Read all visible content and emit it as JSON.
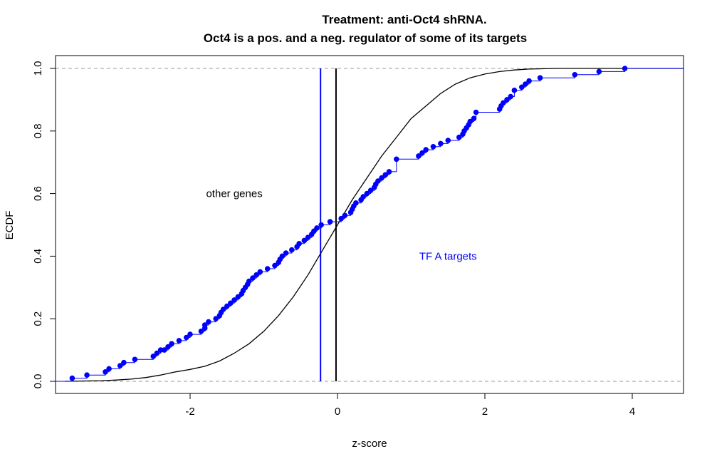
{
  "chart_data": {
    "type": "line",
    "title": [
      "Treatment: anti-Oct4 shRNA.",
      "Oct4 is a pos. and a neg. regulator of some of its targets"
    ],
    "xlabel": "z-score",
    "ylabel": "ECDF",
    "xlim": [
      -3.7,
      4.7
    ],
    "ylim": [
      0,
      1
    ],
    "x_ticks": [
      -2,
      0,
      2,
      4
    ],
    "x_tick_labels": [
      "-2",
      "0",
      "2",
      "4"
    ],
    "y_ticks": [
      0,
      0.2,
      0.4,
      0.6,
      0.8,
      1
    ],
    "y_tick_labels": [
      "0.0",
      "0.2",
      "0.4",
      "0.6",
      "0.8",
      "1.0"
    ],
    "reference_lines": {
      "horizontal_dashed": [
        0,
        1
      ],
      "vertical": [
        {
          "x": -0.02,
          "color": "#000000"
        },
        {
          "x": -0.23,
          "color": "#0000ff"
        }
      ]
    },
    "annotations": [
      {
        "text": "other genes",
        "x": -1.4,
        "y": 0.6,
        "color": "#000000"
      },
      {
        "text": "TF A targets",
        "x": 1.5,
        "y": 0.4,
        "color": "#0000ff"
      }
    ],
    "series": [
      {
        "color": "#000000",
        "style": "step-line",
        "x": [
          -3.7,
          -3.2,
          -3.0,
          -2.8,
          -2.6,
          -2.4,
          -2.2,
          -2.0,
          -1.8,
          -1.6,
          -1.4,
          -1.2,
          -1.0,
          -0.8,
          -0.6,
          -0.4,
          -0.2,
          0.0,
          0.2,
          0.4,
          0.6,
          0.8,
          1.0,
          1.2,
          1.4,
          1.6,
          1.8,
          2.0,
          2.2,
          2.4,
          2.6,
          2.8,
          3.0,
          3.5,
          4.7
        ],
        "y": [
          0.0,
          0.002,
          0.004,
          0.007,
          0.012,
          0.02,
          0.03,
          0.038,
          0.048,
          0.065,
          0.09,
          0.12,
          0.16,
          0.21,
          0.27,
          0.34,
          0.42,
          0.5,
          0.58,
          0.65,
          0.72,
          0.78,
          0.84,
          0.88,
          0.92,
          0.95,
          0.97,
          0.982,
          0.99,
          0.995,
          0.998,
          0.999,
          1.0,
          1.0,
          1.0
        ]
      },
      {
        "color": "#0000ff",
        "style": "step-points",
        "x": [
          -3.6,
          -3.4,
          -3.15,
          -3.1,
          -2.95,
          -2.9,
          -2.75,
          -2.5,
          -2.45,
          -2.4,
          -2.35,
          -2.3,
          -2.25,
          -2.15,
          -2.05,
          -2.0,
          -1.85,
          -1.8,
          -1.8,
          -1.75,
          -1.65,
          -1.6,
          -1.58,
          -1.55,
          -1.5,
          -1.45,
          -1.4,
          -1.35,
          -1.3,
          -1.28,
          -1.25,
          -1.22,
          -1.2,
          -1.15,
          -1.1,
          -1.05,
          -0.95,
          -0.85,
          -0.8,
          -0.78,
          -0.75,
          -0.7,
          -0.62,
          -0.55,
          -0.52,
          -0.45,
          -0.4,
          -0.35,
          -0.32,
          -0.28,
          -0.22,
          -0.1,
          0.05,
          0.1,
          0.18,
          0.2,
          0.22,
          0.25,
          0.32,
          0.35,
          0.4,
          0.45,
          0.5,
          0.52,
          0.55,
          0.6,
          0.65,
          0.7,
          0.8,
          1.1,
          1.15,
          1.2,
          1.3,
          1.4,
          1.5,
          1.65,
          1.7,
          1.72,
          1.75,
          1.78,
          1.8,
          1.85,
          1.88,
          2.2,
          2.22,
          2.25,
          2.3,
          2.35,
          2.4,
          2.5,
          2.55,
          2.6,
          2.75,
          3.22,
          3.55,
          3.9
        ],
        "y": [
          0.01,
          0.02,
          0.03,
          0.04,
          0.05,
          0.06,
          0.07,
          0.08,
          0.09,
          0.1,
          0.1,
          0.11,
          0.12,
          0.13,
          0.14,
          0.15,
          0.16,
          0.17,
          0.18,
          0.19,
          0.2,
          0.21,
          0.22,
          0.23,
          0.24,
          0.25,
          0.26,
          0.27,
          0.28,
          0.29,
          0.3,
          0.31,
          0.32,
          0.33,
          0.34,
          0.35,
          0.36,
          0.37,
          0.38,
          0.39,
          0.4,
          0.41,
          0.42,
          0.43,
          0.44,
          0.45,
          0.46,
          0.47,
          0.48,
          0.49,
          0.5,
          0.51,
          0.52,
          0.53,
          0.54,
          0.55,
          0.56,
          0.57,
          0.58,
          0.59,
          0.6,
          0.61,
          0.62,
          0.63,
          0.64,
          0.65,
          0.66,
          0.67,
          0.71,
          0.72,
          0.73,
          0.74,
          0.75,
          0.76,
          0.77,
          0.78,
          0.79,
          0.8,
          0.81,
          0.82,
          0.83,
          0.84,
          0.86,
          0.87,
          0.88,
          0.89,
          0.9,
          0.91,
          0.93,
          0.94,
          0.95,
          0.96,
          0.97,
          0.98,
          0.99,
          1.0
        ]
      }
    ]
  }
}
